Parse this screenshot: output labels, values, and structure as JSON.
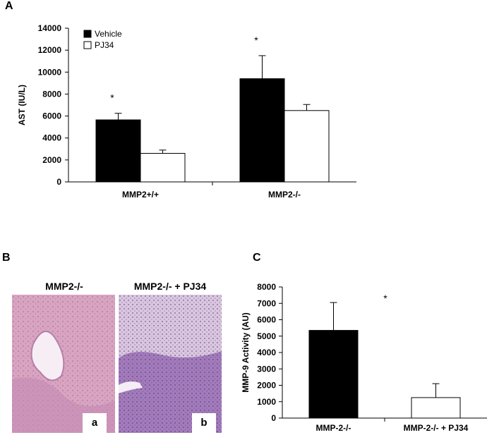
{
  "panels": {
    "a": {
      "letter": "A"
    },
    "b": {
      "letter": "B",
      "images": [
        {
          "title": "MMP2-/-",
          "label": "a"
        },
        {
          "title": "MMP2-/- + PJ34",
          "label": "b"
        }
      ]
    },
    "c": {
      "letter": "C"
    }
  },
  "colors": {
    "vehicle_fill": "#000000",
    "pj34_fill": "#ffffff",
    "tissue_pink": "#d99ab8",
    "tissue_purple": "#9b6fb3",
    "vessel_lumen": "#f7eef5"
  },
  "chart_data": [
    {
      "id": "A",
      "type": "bar",
      "title": "",
      "xlabel": "",
      "ylabel": "AST (IU/L)",
      "ylim": [
        0,
        14000
      ],
      "yticks": [
        0,
        2000,
        4000,
        6000,
        8000,
        10000,
        12000,
        14000
      ],
      "categories": [
        "MMP2+/+",
        "MMP2-/-"
      ],
      "legend": "top-left",
      "grid": false,
      "series": [
        {
          "name": "Vehicle",
          "values": [
            5650,
            9400
          ],
          "errors": [
            600,
            2100
          ]
        },
        {
          "name": "PJ34",
          "values": [
            2600,
            6500
          ],
          "errors": [
            300,
            550
          ]
        }
      ],
      "annotations": [
        "*",
        "*"
      ]
    },
    {
      "id": "C",
      "type": "bar",
      "title": "",
      "xlabel": "",
      "ylabel": "MMP-9 Activity (AU)",
      "ylim": [
        0,
        8000
      ],
      "yticks": [
        0,
        1000,
        2000,
        3000,
        4000,
        5000,
        6000,
        7000,
        8000
      ],
      "categories": [
        "MMP-2-/-",
        "MMP-2-/- + PJ34"
      ],
      "grid": false,
      "values": [
        5350,
        1250
      ],
      "errors": [
        1700,
        850
      ],
      "annotations": [
        "*"
      ]
    }
  ]
}
